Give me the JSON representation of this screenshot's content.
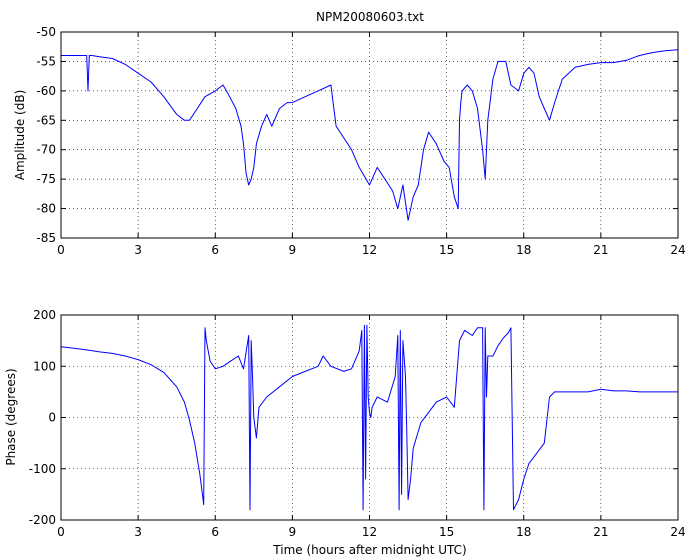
{
  "figure": {
    "title": "NPM20080603.txt",
    "line_color": "#0000ff"
  },
  "chart_data": [
    {
      "type": "line",
      "title": "NPM20080603.txt",
      "xlabel": "",
      "ylabel": "Amplitude (dB)",
      "xlim": [
        0,
        24
      ],
      "ylim": [
        -85,
        -50
      ],
      "xticks": [
        0,
        3,
        6,
        9,
        12,
        15,
        18,
        21,
        24
      ],
      "yticks": [
        -85,
        -80,
        -75,
        -70,
        -65,
        -60,
        -55,
        -50
      ],
      "grid": true,
      "series": [
        {
          "x": [
            0,
            0.5,
            1.0,
            1.05,
            1.1,
            1.15,
            1.2,
            1.5,
            2.0,
            2.5,
            3.0,
            3.5,
            4.0,
            4.5,
            4.8,
            5.0,
            5.3,
            5.6,
            6.0,
            6.3,
            6.5,
            6.8,
            7.0,
            7.1,
            7.2,
            7.3,
            7.4,
            7.5,
            7.6,
            7.8,
            8.0,
            8.2,
            8.5,
            8.8,
            9.0,
            9.5,
            10.0,
            10.5,
            10.7,
            11.0,
            11.3,
            11.6,
            12.0,
            12.3,
            12.6,
            12.9,
            13.1,
            13.3,
            13.5,
            13.7,
            13.9,
            14.1,
            14.3,
            14.6,
            14.9,
            15.1,
            15.3,
            15.45,
            15.5,
            15.55,
            15.6,
            15.8,
            16.0,
            16.2,
            16.4,
            16.5,
            16.55,
            16.6,
            16.8,
            17.0,
            17.3,
            17.5,
            17.8,
            18.0,
            18.2,
            18.4,
            18.6,
            18.8,
            19.0,
            19.2,
            19.5,
            20.0,
            20.5,
            21.0,
            21.5,
            22.0,
            22.5,
            23.0,
            23.5,
            24.0
          ],
          "y": [
            -54,
            -54,
            -54,
            -60,
            -54,
            -54,
            -54,
            -54.2,
            -54.5,
            -55.5,
            -57,
            -58.5,
            -61,
            -64,
            -65,
            -65,
            -63,
            -61,
            -60,
            -59,
            -60.5,
            -63,
            -66,
            -69,
            -74,
            -76,
            -75,
            -73,
            -69,
            -66,
            -64,
            -66,
            -63,
            -62,
            -62,
            -61,
            -60,
            -59,
            -66,
            -68,
            -70,
            -73,
            -76,
            -73,
            -75,
            -77,
            -80,
            -76,
            -82,
            -78,
            -76,
            -70,
            -67,
            -69,
            -72,
            -73,
            -78,
            -80,
            -65,
            -62,
            -60,
            -59,
            -60,
            -63,
            -70,
            -75,
            -70,
            -65,
            -58,
            -55,
            -55,
            -59,
            -60,
            -57,
            -56,
            -57,
            -61,
            -63,
            -65,
            -62,
            -58,
            -56,
            -55.5,
            -55.2,
            -55.2,
            -54.8,
            -54,
            -53.5,
            -53.2,
            -53
          ]
        }
      ]
    },
    {
      "type": "line",
      "title": "",
      "xlabel": "Time (hours after midnight UTC)",
      "ylabel": "Phase (degrees)",
      "xlim": [
        0,
        24
      ],
      "ylim": [
        -200,
        200
      ],
      "xticks": [
        0,
        3,
        6,
        9,
        12,
        15,
        18,
        21,
        24
      ],
      "yticks": [
        -200,
        -100,
        0,
        100,
        200
      ],
      "grid": true,
      "series": [
        {
          "x": [
            0,
            0.5,
            1.0,
            1.5,
            2.0,
            2.5,
            3.0,
            3.5,
            4.0,
            4.5,
            4.8,
            5.0,
            5.2,
            5.4,
            5.55,
            5.6,
            5.65,
            5.8,
            6.0,
            6.3,
            6.6,
            6.9,
            7.1,
            7.3,
            7.35,
            7.4,
            7.45,
            7.5,
            7.6,
            7.7,
            8.0,
            8.5,
            9.0,
            9.5,
            10.0,
            10.2,
            10.5,
            11.0,
            11.3,
            11.6,
            11.7,
            11.75,
            11.8,
            11.85,
            11.9,
            11.95,
            12.0,
            12.05,
            12.1,
            12.3,
            12.7,
            13.0,
            13.1,
            13.15,
            13.2,
            13.25,
            13.3,
            13.4,
            13.45,
            13.5,
            13.6,
            13.7,
            14.0,
            14.3,
            14.6,
            15.0,
            15.3,
            15.5,
            15.7,
            16.0,
            16.2,
            16.4,
            16.45,
            16.5,
            16.55,
            16.6,
            16.8,
            17.0,
            17.2,
            17.4,
            17.5,
            17.6,
            17.8,
            18.0,
            18.2,
            18.5,
            18.8,
            19.0,
            19.2,
            19.5,
            20.0,
            20.5,
            21.0,
            21.5,
            22.0,
            22.5,
            23.0,
            23.5,
            24.0
          ],
          "y": [
            138,
            135,
            132,
            128,
            125,
            120,
            113,
            103,
            88,
            60,
            30,
            -5,
            -50,
            -110,
            -170,
            175,
            150,
            110,
            95,
            100,
            110,
            120,
            95,
            160,
            -180,
            150,
            80,
            0,
            -40,
            20,
            40,
            60,
            80,
            90,
            100,
            120,
            100,
            90,
            95,
            130,
            170,
            -180,
            180,
            -120,
            180,
            40,
            10,
            0,
            20,
            40,
            30,
            80,
            160,
            -180,
            170,
            -150,
            150,
            80,
            -30,
            -160,
            -120,
            -60,
            -10,
            10,
            30,
            40,
            20,
            150,
            170,
            160,
            175,
            175,
            -180,
            175,
            40,
            120,
            120,
            140,
            155,
            165,
            175,
            -180,
            -160,
            -120,
            -90,
            -70,
            -50,
            40,
            50,
            50,
            50,
            50,
            55,
            52,
            52,
            50,
            50,
            50,
            50
          ]
        }
      ]
    }
  ]
}
